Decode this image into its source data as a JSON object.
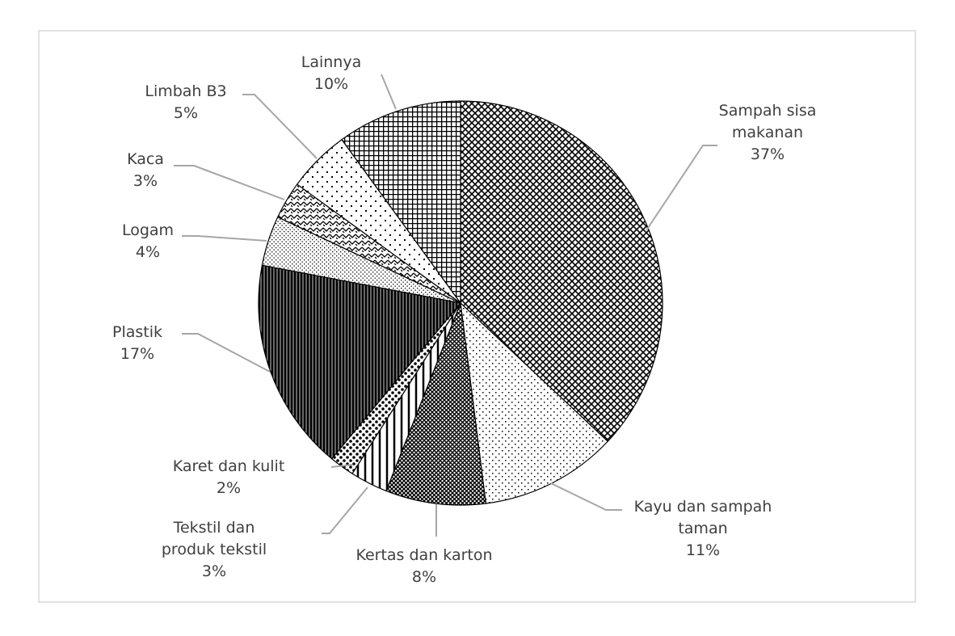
{
  "chart_data": {
    "type": "pie",
    "categories": [
      "Sampah sisa makanan",
      "Kayu dan sampah taman",
      "Kertas dan karton",
      "Tekstil dan produk tekstil",
      "Karet dan kulit",
      "Plastik",
      "Logam",
      "Kaca",
      "Limbah B3",
      "Lainnya"
    ],
    "values": [
      37,
      11,
      8,
      3,
      2,
      17,
      4,
      3,
      5,
      10
    ],
    "value_labels": [
      "37%",
      "11%",
      "8%",
      "3%",
      "2%",
      "17%",
      "4%",
      "3%",
      "5%",
      "10%"
    ]
  }
}
